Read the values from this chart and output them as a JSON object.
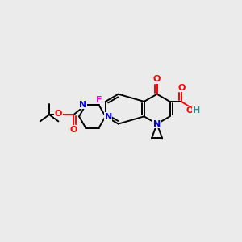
{
  "background_color": "#ebebeb",
  "atom_colors": {
    "C": "#000000",
    "N": "#0000cc",
    "O": "#ff0000",
    "F": "#ff00cc",
    "H": "#2e8b8b"
  },
  "figsize": [
    3.0,
    3.0
  ],
  "dpi": 100
}
